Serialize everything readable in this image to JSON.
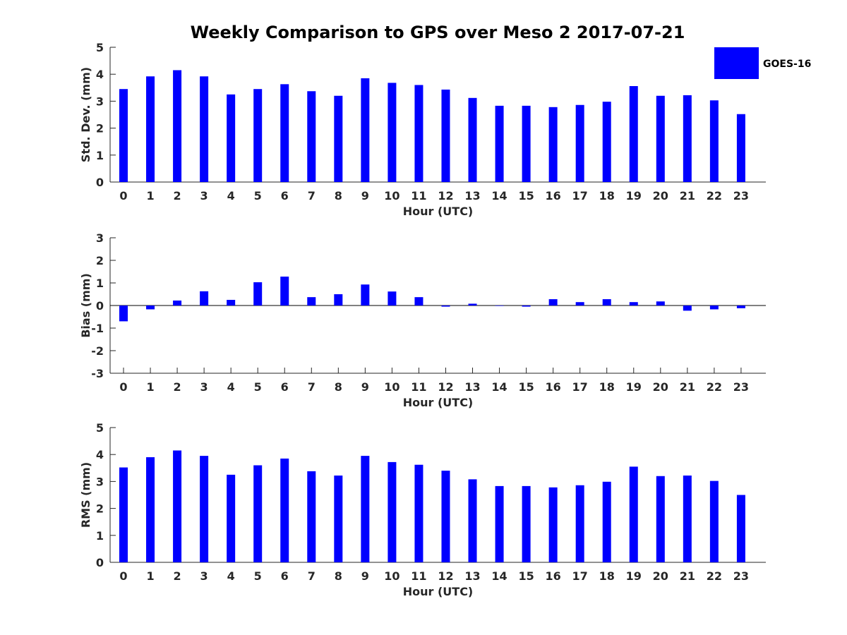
{
  "chart_data": [
    {
      "type": "bar",
      "title": "Weekly Comparison to GPS over Meso 2 2017-07-21",
      "xlabel": "Hour (UTC)",
      "ylabel": "Std. Dev. (mm)",
      "ylim": [
        0,
        5
      ],
      "yticks": [
        "0",
        "1",
        "2",
        "3",
        "4",
        "5"
      ],
      "categories": [
        "0",
        "1",
        "2",
        "3",
        "4",
        "5",
        "6",
        "7",
        "8",
        "9",
        "10",
        "11",
        "12",
        "13",
        "14",
        "15",
        "16",
        "17",
        "18",
        "19",
        "20",
        "21",
        "22",
        "23"
      ],
      "series": [
        {
          "name": "GOES-16",
          "color": "#0000ff",
          "values": [
            3.45,
            3.92,
            4.15,
            3.92,
            3.25,
            3.45,
            3.63,
            3.37,
            3.2,
            3.85,
            3.68,
            3.6,
            3.43,
            3.12,
            2.83,
            2.83,
            2.78,
            2.86,
            2.98,
            3.56,
            3.2,
            3.22,
            3.03,
            2.52
          ]
        }
      ],
      "legend": {
        "position": "top-right",
        "entries": [
          "GOES-16"
        ]
      },
      "grid": false
    },
    {
      "type": "bar",
      "title": "",
      "xlabel": "Hour (UTC)",
      "ylabel": "Bias (mm)",
      "ylim": [
        -3,
        3
      ],
      "yticks": [
        "-3",
        "-2",
        "-1",
        "0",
        "1",
        "2",
        "3"
      ],
      "categories": [
        "0",
        "1",
        "2",
        "3",
        "4",
        "5",
        "6",
        "7",
        "8",
        "9",
        "10",
        "11",
        "12",
        "13",
        "14",
        "15",
        "16",
        "17",
        "18",
        "19",
        "20",
        "21",
        "22",
        "23"
      ],
      "series": [
        {
          "name": "GOES-16",
          "color": "#0000ff",
          "values": [
            -0.7,
            -0.17,
            0.22,
            0.63,
            0.25,
            1.03,
            1.28,
            0.37,
            0.5,
            0.93,
            0.62,
            0.37,
            -0.05,
            0.08,
            -0.02,
            -0.05,
            0.28,
            0.15,
            0.28,
            0.15,
            0.18,
            -0.23,
            -0.17,
            -0.12
          ]
        }
      ],
      "grid": false
    },
    {
      "type": "bar",
      "title": "",
      "xlabel": "Hour (UTC)",
      "ylabel": "RMS (mm)",
      "ylim": [
        0,
        5
      ],
      "yticks": [
        "0",
        "1",
        "2",
        "3",
        "4",
        "5"
      ],
      "categories": [
        "0",
        "1",
        "2",
        "3",
        "4",
        "5",
        "6",
        "7",
        "8",
        "9",
        "10",
        "11",
        "12",
        "13",
        "14",
        "15",
        "16",
        "17",
        "18",
        "19",
        "20",
        "21",
        "22",
        "23"
      ],
      "series": [
        {
          "name": "GOES-16",
          "color": "#0000ff",
          "values": [
            3.52,
            3.9,
            4.15,
            3.95,
            3.25,
            3.6,
            3.85,
            3.38,
            3.22,
            3.95,
            3.72,
            3.62,
            3.4,
            3.08,
            2.83,
            2.83,
            2.78,
            2.86,
            2.99,
            3.55,
            3.2,
            3.22,
            3.02,
            2.5
          ]
        }
      ],
      "grid": false
    }
  ]
}
